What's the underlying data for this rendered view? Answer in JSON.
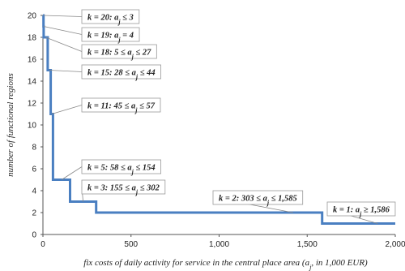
{
  "chart_data": {
    "type": "line",
    "xlabel": "fix costs of daily activity for service in the central place area (a_j, in 1,000 EUR)",
    "ylabel": "number of functional regions",
    "xlim": [
      0,
      2000
    ],
    "ylim": [
      0,
      20
    ],
    "x_ticks": [
      "0",
      "500",
      "1,000",
      "1,500",
      "2,000"
    ],
    "y_ticks": [
      "0",
      "2",
      "4",
      "6",
      "8",
      "10",
      "12",
      "14",
      "16",
      "18",
      "20"
    ],
    "grid": false,
    "series": [
      {
        "color": "#4a7fc1",
        "step_points": [
          [
            0,
            20
          ],
          [
            3,
            20
          ],
          [
            3,
            19
          ],
          [
            4,
            19
          ],
          [
            4,
            18
          ],
          [
            27,
            18
          ],
          [
            27,
            15
          ],
          [
            44,
            15
          ],
          [
            44,
            11
          ],
          [
            57,
            11
          ],
          [
            57,
            5
          ],
          [
            154,
            5
          ],
          [
            154,
            3
          ],
          [
            302,
            3
          ],
          [
            302,
            2
          ],
          [
            1585,
            2
          ],
          [
            1585,
            1
          ],
          [
            2000,
            1
          ]
        ]
      }
    ],
    "annotations": [
      {
        "text": "k = 20: a_j ≤ 3",
        "x": 3,
        "y": 20
      },
      {
        "text": "k = 19:  a_j = 4",
        "x": 4,
        "y": 19
      },
      {
        "text": "k = 18: 5 ≤ a_j ≤ 27",
        "x": 16,
        "y": 18
      },
      {
        "text": "k = 15: 28 ≤ a_j ≤ 44",
        "x": 36,
        "y": 15
      },
      {
        "text": "k = 11: 45 ≤ a_j ≤ 57",
        "x": 50,
        "y": 11
      },
      {
        "text": "k = 5: 58 ≤ a_j ≤ 154",
        "x": 106,
        "y": 5
      },
      {
        "text": "k = 3: 155 ≤ a_j ≤ 302",
        "x": 228,
        "y": 3
      },
      {
        "text": "k = 2: 303 ≤ a_j ≤ 1,585",
        "x": 1420,
        "y": 2
      },
      {
        "text": "k = 1: a_j ≥ 1,586",
        "x": 1900,
        "y": 1
      }
    ]
  }
}
